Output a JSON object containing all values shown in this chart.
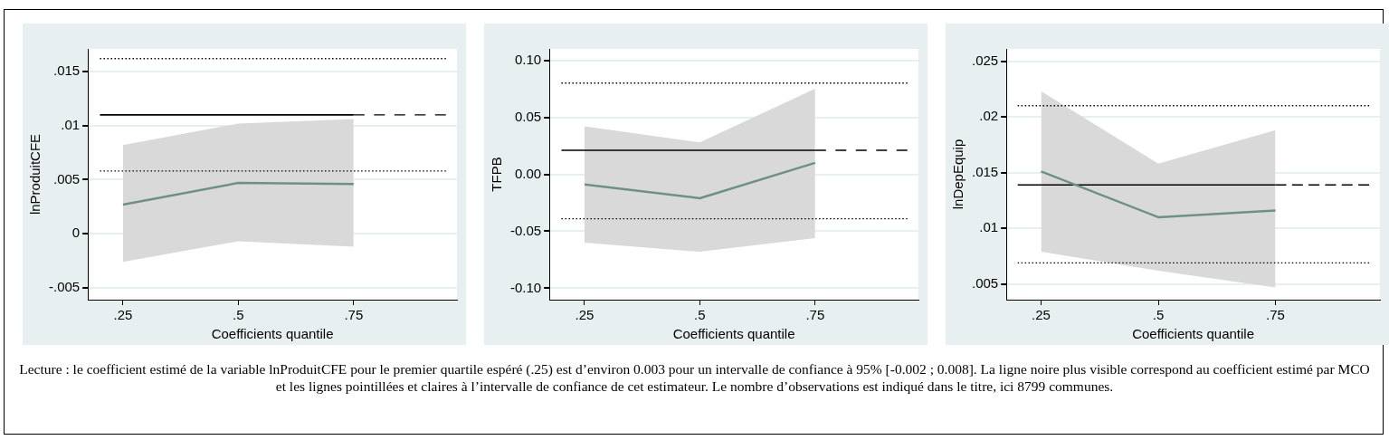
{
  "chart_data": [
    {
      "type": "line",
      "xlabel": "Coefficients quantile",
      "ylabel": "lnProduitCFE",
      "marker": "none",
      "grid": "y",
      "xlim": [
        0.174,
        0.974
      ],
      "xticks": [
        {
          "value": 0.25,
          "label": ".25"
        },
        {
          "value": 0.5,
          "label": ".5"
        },
        {
          "value": 0.75,
          "label": ".75"
        }
      ],
      "ylim": [
        -0.0061,
        0.0171
      ],
      "yticks": [
        {
          "value": -0.005,
          "label": "-.005"
        },
        0,
        {
          "value": 0.005,
          "label": ".005"
        },
        {
          "value": 0.01,
          "label": ".01"
        },
        {
          "value": 0.015,
          "label": ".015"
        }
      ],
      "series": [
        {
          "x": [
            0.2,
            0.95
          ],
          "values": [
            0.0162,
            0.0162
          ],
          "color": "#000000",
          "line_style": "dotted"
        },
        {
          "x": [
            0.2,
            0.95
          ],
          "values": [
            0.0058,
            0.0058
          ],
          "color": "#000000",
          "line_style": "dotted"
        },
        {
          "x": [
            0.2,
            0.75
          ],
          "values": [
            0.011,
            0.011
          ],
          "color": "#000000",
          "line_style": "solid"
        },
        {
          "x": [
            0.75,
            0.95
          ],
          "values": [
            0.011,
            0.011
          ],
          "color": "#000000",
          "line_style": "dashed"
        },
        {
          "x": [
            0.25,
            0.5,
            0.75
          ],
          "values": [
            0.0027,
            0.0047,
            0.0046
          ],
          "lower": [
            -0.0026,
            -0.0007,
            -0.0012
          ],
          "upper": [
            0.0082,
            0.0102,
            0.0106
          ],
          "color": "#6f9183",
          "line_style": "solid"
        }
      ],
      "annotations": [
        "Lecture : le coefficient estimé de la variable lnProduitCFE pour le premier quartile espéré (.25) est d’environ 0.003 pour un intervalle de confiance à 95% [-0.002 ; 0.008]. La ligne noire plus visible correspond au coefficient estimé par MCO et les lignes pointillées et claires à l’intervalle de confiance de cet estimateur. Le nombre d’observations est indiqué dans le titre, ici 8799 communes."
      ]
    },
    {
      "type": "line",
      "xlabel": "Coefficients quantile",
      "ylabel": "TFPB",
      "marker": "none",
      "grid": "y",
      "xlim": [
        0.174,
        0.974
      ],
      "xticks": [
        {
          "value": 0.25,
          "label": ".25"
        },
        {
          "value": 0.5,
          "label": ".5"
        },
        {
          "value": 0.75,
          "label": ".75"
        }
      ],
      "ylim": [
        -0.11,
        0.11
      ],
      "yticks": [
        {
          "value": -0.1,
          "label": "-0.10"
        },
        -0.05,
        {
          "value": 0,
          "label": "0.00"
        },
        0.05,
        {
          "value": 0.1,
          "label": "0.10"
        }
      ],
      "series": [
        {
          "x": [
            0.2,
            0.95
          ],
          "values": [
            0.08,
            0.08
          ],
          "color": "#000000",
          "line_style": "dotted"
        },
        {
          "x": [
            0.2,
            0.95
          ],
          "values": [
            -0.039,
            -0.039
          ],
          "color": "#000000",
          "line_style": "dotted"
        },
        {
          "x": [
            0.2,
            0.75
          ],
          "values": [
            0.021,
            0.021
          ],
          "color": "#000000",
          "line_style": "solid"
        },
        {
          "x": [
            0.75,
            0.95
          ],
          "values": [
            0.021,
            0.021
          ],
          "color": "#000000",
          "line_style": "dashed"
        },
        {
          "x": [
            0.25,
            0.5,
            0.75
          ],
          "values": [
            -0.009,
            -0.021,
            0.01
          ],
          "lower": [
            -0.06,
            -0.068,
            -0.056
          ],
          "upper": [
            0.042,
            0.028,
            0.075
          ],
          "color": "#6f9183",
          "line_style": "solid"
        }
      ]
    },
    {
      "type": "line",
      "xlabel": "Coefficients quantile",
      "ylabel": "lnDepEquip",
      "marker": "none",
      "grid": "y",
      "xlim": [
        0.176,
        0.973
      ],
      "xticks": [
        {
          "value": 0.25,
          "label": ".25"
        },
        {
          "value": 0.5,
          "label": ".5"
        },
        {
          "value": 0.75,
          "label": ".75"
        }
      ],
      "ylim": [
        0.0036,
        0.0261
      ],
      "yticks": [
        {
          "value": 0.005,
          "label": ".005"
        },
        {
          "value": 0.01,
          "label": ".01"
        },
        {
          "value": 0.015,
          "label": ".015"
        },
        {
          "value": 0.02,
          "label": ".02"
        },
        {
          "value": 0.025,
          "label": ".025"
        }
      ],
      "series": [
        {
          "x": [
            0.2,
            0.95
          ],
          "values": [
            0.021,
            0.021
          ],
          "color": "#000000",
          "line_style": "dotted"
        },
        {
          "x": [
            0.2,
            0.95
          ],
          "values": [
            0.0069,
            0.0069
          ],
          "color": "#000000",
          "line_style": "dotted"
        },
        {
          "x": [
            0.2,
            0.75
          ],
          "values": [
            0.0139,
            0.0139
          ],
          "color": "#000000",
          "line_style": "solid"
        },
        {
          "x": [
            0.75,
            0.95
          ],
          "values": [
            0.0139,
            0.0139
          ],
          "color": "#000000",
          "line_style": "dashed"
        },
        {
          "x": [
            0.25,
            0.5,
            0.75
          ],
          "values": [
            0.0151,
            0.011,
            0.0116
          ],
          "lower": [
            0.0079,
            0.0062,
            0.0047
          ],
          "upper": [
            0.0223,
            0.0158,
            0.0188
          ],
          "color": "#6f9183",
          "line_style": "solid"
        }
      ]
    }
  ]
}
